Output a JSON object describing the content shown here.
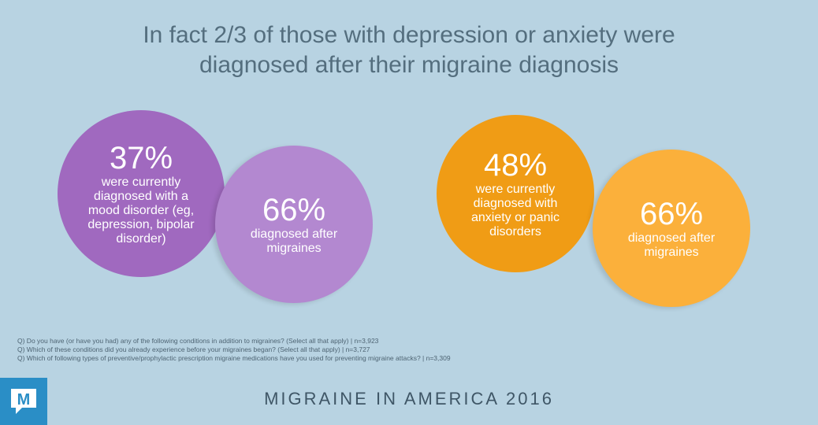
{
  "title": {
    "line1": "In fact 2/3 of those with depression or anxiety were",
    "line2": "diagnosed after their migraine diagnosis"
  },
  "stats": {
    "mood": {
      "percent": "37%",
      "description": "were currently diagnosed with a mood disorder (eg, depression, bipolar disorder)"
    },
    "mood_after": {
      "percent": "66%",
      "description": "diagnosed after migraines"
    },
    "anxiety": {
      "percent": "48%",
      "description": "were currently diagnosed with anxiety or panic disorders"
    },
    "anxiety_after": {
      "percent": "66%",
      "description": "diagnosed after migraines"
    }
  },
  "notes": [
    "Q) Do you have (or have you had) any of the following conditions in addition to migraines? (Select all that apply) | n=3,923",
    "Q) Which of these conditions did you already experience before your migraines began? (Select all that apply) | n=3,727",
    "Q) Which of following types of preventive/prophylactic prescription migraine medications have you used for preventing migraine attacks? | n=3,309"
  ],
  "footer": "MIGRAINE IN AMERICA 2016",
  "logo": {
    "letter": "M",
    "icon": "speech-bubble-icon"
  },
  "colors": {
    "background": "#b8d3e2",
    "purple_dark": "#a069bf",
    "purple_light": "#b388d0",
    "orange_dark": "#f09c15",
    "orange_light": "#fbb03b",
    "logo_blue": "#2a8ec6"
  }
}
